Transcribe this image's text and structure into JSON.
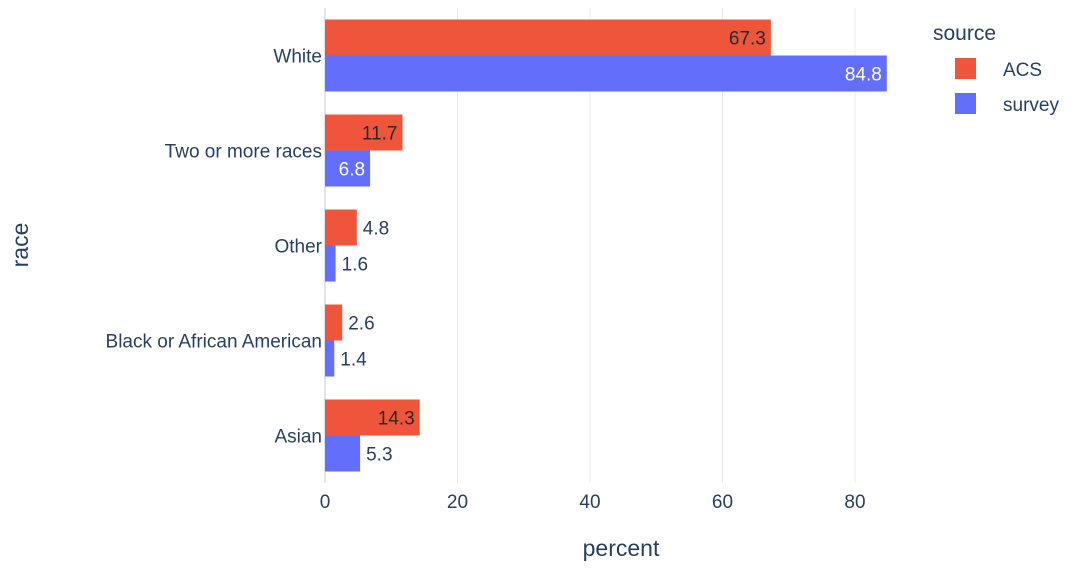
{
  "chart_data": {
    "type": "bar",
    "orientation": "horizontal",
    "barmode": "group",
    "categories": [
      "White",
      "Two or more races",
      "Other",
      "Black or African American",
      "Asian"
    ],
    "series": [
      {
        "name": "ACS",
        "values": [
          67.3,
          11.7,
          4.8,
          2.6,
          14.3
        ],
        "color": "#ef553b"
      },
      {
        "name": "survey",
        "values": [
          84.8,
          6.8,
          1.6,
          1.4,
          5.3
        ],
        "color": "#636efa"
      }
    ],
    "title": "",
    "xlabel": "percent",
    "ylabel": "race",
    "xlim": [
      0,
      90
    ],
    "xticks": [
      0,
      20,
      40,
      60,
      80
    ],
    "legend_title": "source",
    "legend_position": "top-right",
    "grid": true
  }
}
